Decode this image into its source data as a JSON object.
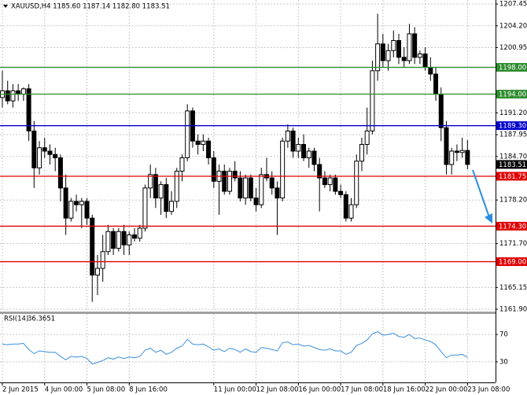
{
  "chart_data": [
    {
      "type": "candlestick",
      "title": "XAUUSD,H4  1185.60 1187.14 1182.80 1183.51",
      "categories": [
        "2 Jun 2015",
        null,
        null,
        null,
        null,
        null,
        null,
        null,
        "4 Jun 00:00",
        null,
        null,
        null,
        null,
        null,
        null,
        null,
        "5 Jun 08:00",
        null,
        null,
        null,
        null,
        null,
        null,
        null,
        "8 Jun 16:00",
        null,
        null,
        null,
        null,
        null,
        null,
        null,
        null,
        null,
        null,
        null,
        null,
        null,
        null,
        null,
        "11 Jun 00:00",
        null,
        null,
        null,
        null,
        null,
        null,
        null,
        "12 Jun 08:00",
        null,
        null,
        null,
        null,
        null,
        null,
        null,
        "16 Jun 00:00",
        null,
        null,
        null,
        null,
        null,
        null,
        null,
        "17 Jun 08:00",
        null,
        null,
        null,
        null,
        null,
        null,
        null,
        "18 Jun 16:00",
        null,
        null,
        null,
        null,
        null,
        null,
        null,
        "22 Jun 00:00",
        null,
        null,
        null,
        null,
        null,
        null,
        null,
        "23 Jun 08:00"
      ],
      "open": [
        1193.5,
        1194.5,
        1193,
        1194.5,
        1194,
        1194.8,
        1188.5,
        1183,
        1186,
        1185.5,
        1185,
        1184.5,
        1180,
        1175.5,
        1178,
        1177.5,
        1178,
        1175.5,
        1167,
        1168,
        1170.5,
        1173.5,
        1171,
        1173.5,
        1171.5,
        1173,
        1172.5,
        1174,
        1180,
        1182,
        1178.5,
        1180.5,
        1176.5,
        1178,
        1182.5,
        1184.5,
        1191.5,
        1187,
        1186.5,
        1187,
        1184.5,
        1181,
        1182.5,
        1179.5,
        1182.5,
        1181.5,
        1178.5,
        1181.5,
        1178.5,
        1177.5,
        1182,
        1181.5,
        1180,
        1178.5,
        1187,
        1188.5,
        1185.5,
        1186.5,
        1184.5,
        1185.5,
        1183.5,
        1181.5,
        1180.5,
        1181.5,
        1179.5,
        1179,
        1175.5,
        1177.5,
        1184,
        1186.5,
        1188.5,
        1197.5,
        1201.5,
        1199,
        1200.5,
        1202,
        1199.5,
        1199,
        1203,
        1199.5,
        1200,
        1198,
        1197,
        1194,
        1189,
        1183.5,
        1185.5,
        1185.3,
        1185.6
      ],
      "high": [
        1197.5,
        1196,
        1195.5,
        1195.5,
        1195,
        1195.5,
        1190,
        1187,
        1187.5,
        1186.5,
        1186,
        1185,
        1182,
        1178.5,
        1179,
        1178.5,
        1178.5,
        1176,
        1170,
        1173,
        1174.5,
        1174,
        1174,
        1174.5,
        1173.5,
        1174,
        1174.5,
        1180.5,
        1183.5,
        1183,
        1181,
        1181.5,
        1179.5,
        1183,
        1185,
        1192.5,
        1192,
        1188,
        1188,
        1187.5,
        1185.5,
        1183.5,
        1183.5,
        1183,
        1184,
        1182.5,
        1182,
        1182,
        1180,
        1183,
        1184.5,
        1182.5,
        1181,
        1187.5,
        1189.5,
        1189,
        1187.5,
        1188,
        1186,
        1186,
        1184.5,
        1182.5,
        1182,
        1182,
        1180.5,
        1179.5,
        1178.5,
        1185,
        1187.5,
        1192,
        1199,
        1206,
        1203,
        1201.5,
        1203.5,
        1203,
        1201,
        1204.5,
        1204,
        1200.5,
        1201,
        1199.5,
        1198,
        1195,
        1190,
        1186,
        1186.5,
        1187.5,
        1187.14
      ],
      "low": [
        1192,
        1192.5,
        1192,
        1193,
        1193,
        1187,
        1180,
        1182,
        1184.5,
        1183.5,
        1182.5,
        1178,
        1173,
        1175,
        1176.5,
        1174,
        1174.5,
        1163,
        1164,
        1166,
        1170,
        1170,
        1170.5,
        1170,
        1170,
        1172,
        1172,
        1173.5,
        1178.5,
        1177,
        1176,
        1175.5,
        1176,
        1177,
        1181,
        1184,
        1186,
        1185,
        1185.5,
        1183.5,
        1180,
        1176,
        1179,
        1179,
        1181,
        1178,
        1177.5,
        1178,
        1176.5,
        1177,
        1181,
        1179,
        1173,
        1178,
        1186,
        1184.5,
        1184.5,
        1184,
        1183,
        1182.5,
        1176.5,
        1180,
        1179.5,
        1179,
        1178.5,
        1175,
        1175,
        1177,
        1182.5,
        1185,
        1188,
        1196,
        1198,
        1197.5,
        1199.5,
        1198.5,
        1198,
        1198.5,
        1198.5,
        1198.5,
        1197.5,
        1196,
        1193,
        1187,
        1182,
        1182,
        1184,
        1184.5,
        1182.8
      ],
      "close": [
        1194.5,
        1193,
        1194.5,
        1194,
        1194.8,
        1188.5,
        1183,
        1186,
        1185.5,
        1185,
        1184.5,
        1180,
        1175.5,
        1178,
        1177.5,
        1178,
        1175.5,
        1167,
        1168,
        1170.5,
        1173.5,
        1171,
        1173.5,
        1171.5,
        1173,
        1172.5,
        1174,
        1180,
        1182,
        1178.5,
        1180.5,
        1176.5,
        1178,
        1182.5,
        1184.5,
        1191.5,
        1187,
        1186.5,
        1187,
        1184.5,
        1181,
        1182.5,
        1179.5,
        1182.5,
        1181.5,
        1178.5,
        1181.5,
        1178.5,
        1177.5,
        1182,
        1181.5,
        1180,
        1178.5,
        1187,
        1188.5,
        1185.5,
        1186.5,
        1184.5,
        1185.5,
        1183.5,
        1181.5,
        1180.5,
        1181.5,
        1179.5,
        1179,
        1175.5,
        1177.5,
        1184,
        1186.5,
        1188.5,
        1197.5,
        1201.5,
        1199,
        1200.5,
        1202,
        1199.5,
        1199,
        1203,
        1199.5,
        1200,
        1198,
        1197,
        1194,
        1189,
        1183.5,
        1185.5,
        1185.3,
        1185.6,
        1183.51
      ],
      "ylim": [
        1161.55,
        1208.05
      ],
      "yticks": [
        1207.45,
        {
          "value": 1204.2,
          "label": "1204.20"
        },
        {
          "value": 1200.95,
          "label": "1200.95"
        },
        {
          "value": 1191.2,
          "label": "1191.20"
        },
        1187.95,
        {
          "value": 1184.7,
          "label": "1184.70"
        },
        {
          "value": 1178.2,
          "label": "1178.20"
        },
        {
          "value": 1171.7,
          "label": "1171.70"
        },
        1165.15,
        {
          "value": 1161.9,
          "label": "1161.90"
        }
      ],
      "levels": [
        {
          "value": 1198,
          "label": "1198.00",
          "color": "#2e8b2e"
        },
        {
          "value": 1194,
          "label": "1194.00",
          "color": "#2e8b2e"
        },
        {
          "value": 1189.3,
          "label": "1189.30",
          "color": "#0000cc"
        },
        {
          "value": 1181.75,
          "label": "1181.75",
          "color": "#e00000"
        },
        {
          "value": 1174.3,
          "label": "1174.30",
          "color": "#e00000"
        },
        {
          "value": 1169,
          "label": "1169.00",
          "color": "#e00000"
        }
      ],
      "last_price": {
        "value": 1183.51,
        "label": "1183.51",
        "color": "#000000"
      },
      "grid": true
    },
    {
      "type": "line",
      "series": [
        {
          "name": "RSI(14)",
          "color": "#3c8fe0",
          "values": [
            56,
            55,
            56,
            56,
            57,
            48,
            42,
            46,
            45,
            44,
            44,
            38,
            33,
            38,
            37,
            38,
            35,
            27,
            29,
            32,
            36,
            34,
            37,
            35,
            37,
            36,
            38,
            47,
            50,
            44,
            47,
            41,
            44,
            50,
            53,
            63,
            56,
            55,
            56,
            52,
            47,
            49,
            45,
            50,
            48,
            44,
            49,
            45,
            44,
            51,
            50,
            48,
            46,
            58,
            59,
            55,
            56,
            53,
            54,
            51,
            48,
            47,
            49,
            46,
            46,
            41,
            44,
            54,
            57,
            62,
            71,
            74,
            69,
            70,
            72,
            67,
            66,
            70,
            64,
            65,
            62,
            60,
            55,
            45,
            36,
            40,
            40,
            41,
            36.3651
          ]
        }
      ],
      "ylim": [
        0,
        100
      ],
      "yticks": [
        30,
        70
      ],
      "grid": true
    }
  ]
}
